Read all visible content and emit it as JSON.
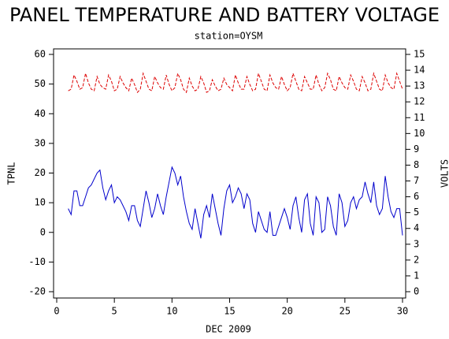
{
  "chart_data": {
    "type": "line",
    "title": "PANEL TEMPERATURE AND BATTERY VOLTAGE",
    "subtitle": "station=OYSM",
    "x_label": "DEC 2009",
    "y_label": "TPNL",
    "y2_label": "VOLTS",
    "xlim": [
      0,
      30
    ],
    "xticks": [
      0,
      5,
      10,
      15,
      20,
      25,
      30
    ],
    "ylim": [
      -20,
      60
    ],
    "yticks": [
      -20,
      -10,
      0,
      10,
      20,
      30,
      40,
      50,
      60
    ],
    "y2lim": [
      0,
      15
    ],
    "y2ticks": [
      0,
      1,
      2,
      3,
      4,
      5,
      6,
      7,
      8,
      9,
      10,
      11,
      12,
      13,
      14,
      15
    ],
    "x": [
      1,
      1.25,
      1.5,
      1.75,
      2,
      2.25,
      2.5,
      2.75,
      3,
      3.25,
      3.5,
      3.75,
      4,
      4.25,
      4.5,
      4.75,
      5,
      5.25,
      5.5,
      5.75,
      6,
      6.25,
      6.5,
      6.75,
      7,
      7.25,
      7.5,
      7.75,
      8,
      8.25,
      8.5,
      8.75,
      9,
      9.25,
      9.5,
      9.75,
      10,
      10.25,
      10.5,
      10.75,
      11,
      11.25,
      11.5,
      11.75,
      12,
      12.25,
      12.5,
      12.75,
      13,
      13.25,
      13.5,
      13.75,
      14,
      14.25,
      14.5,
      14.75,
      15,
      15.25,
      15.5,
      15.75,
      16,
      16.25,
      16.5,
      16.75,
      17,
      17.25,
      17.5,
      17.75,
      18,
      18.25,
      18.5,
      18.75,
      19,
      19.25,
      19.5,
      19.75,
      20,
      20.25,
      20.5,
      20.75,
      21,
      21.25,
      21.5,
      21.75,
      22,
      22.25,
      22.5,
      22.75,
      23,
      23.25,
      23.5,
      23.75,
      24,
      24.25,
      24.5,
      24.75,
      25,
      25.25,
      25.5,
      25.75,
      26,
      26.25,
      26.5,
      26.75,
      27,
      27.25,
      27.5,
      27.75,
      28,
      28.25,
      28.5,
      28.75,
      29,
      29.25,
      29.5,
      29.75,
      30
    ],
    "series": [
      {
        "name": "TPNL",
        "color": "#0000cc",
        "dash": false,
        "values": [
          8,
          6,
          14,
          14,
          9,
          9,
          12,
          15,
          16,
          18,
          20,
          21,
          15,
          11,
          14,
          16,
          10,
          12,
          11,
          9,
          7,
          4,
          9,
          9,
          4,
          2,
          8,
          14,
          10,
          5,
          8,
          13,
          9,
          6,
          12,
          17,
          22,
          20,
          16,
          19,
          12,
          7,
          3,
          1,
          8,
          3,
          -2,
          6,
          9,
          5,
          13,
          8,
          3,
          -1,
          8,
          14,
          16,
          10,
          12,
          15,
          13,
          8,
          13,
          11,
          3,
          0,
          7,
          4,
          1,
          0,
          7,
          -1,
          -1,
          2,
          5,
          8,
          5,
          1,
          9,
          12,
          5,
          0,
          11,
          13,
          3,
          -1,
          12,
          10,
          0,
          1,
          12,
          9,
          2,
          -1,
          13,
          10,
          2,
          4,
          10,
          12,
          8,
          11,
          12,
          17,
          13,
          10,
          17,
          9,
          6,
          8,
          19,
          12,
          7,
          5,
          8,
          8,
          -1
        ]
      },
      {
        "name": "VOLTS",
        "color": "#dd0000",
        "dash": true,
        "axis": "y2",
        "values": [
          12.7,
          12.8,
          13.7,
          13.3,
          12.8,
          12.9,
          13.8,
          13.2,
          12.8,
          12.7,
          13.6,
          13.1,
          12.9,
          12.8,
          13.7,
          13.3,
          12.7,
          12.8,
          13.6,
          13.2,
          12.9,
          12.7,
          13.5,
          13.1,
          12.6,
          12.8,
          13.8,
          13.3,
          12.8,
          12.7,
          13.6,
          13.2,
          12.9,
          12.8,
          13.7,
          13.1,
          12.7,
          12.9,
          13.8,
          13.4,
          12.8,
          12.6,
          13.5,
          13.0,
          12.7,
          12.8,
          13.6,
          13.2,
          12.6,
          12.7,
          13.4,
          13.0,
          12.7,
          12.8,
          13.5,
          13.1,
          12.9,
          12.7,
          13.7,
          13.2,
          12.8,
          12.8,
          13.6,
          13.1,
          12.7,
          12.8,
          13.8,
          13.3,
          12.8,
          12.7,
          13.7,
          13.2,
          12.9,
          12.8,
          13.6,
          13.1,
          12.7,
          12.9,
          13.8,
          13.3,
          12.8,
          12.7,
          13.6,
          13.2,
          12.8,
          12.8,
          13.7,
          13.1,
          12.7,
          12.9,
          13.8,
          13.4,
          12.8,
          12.7,
          13.6,
          13.2,
          12.9,
          12.8,
          13.7,
          13.3,
          12.8,
          12.7,
          13.6,
          13.2,
          12.7,
          12.8,
          13.8,
          13.3,
          12.8,
          12.7,
          13.7,
          13.2,
          12.9,
          12.8,
          13.8,
          13.3,
          12.8
        ]
      }
    ]
  }
}
